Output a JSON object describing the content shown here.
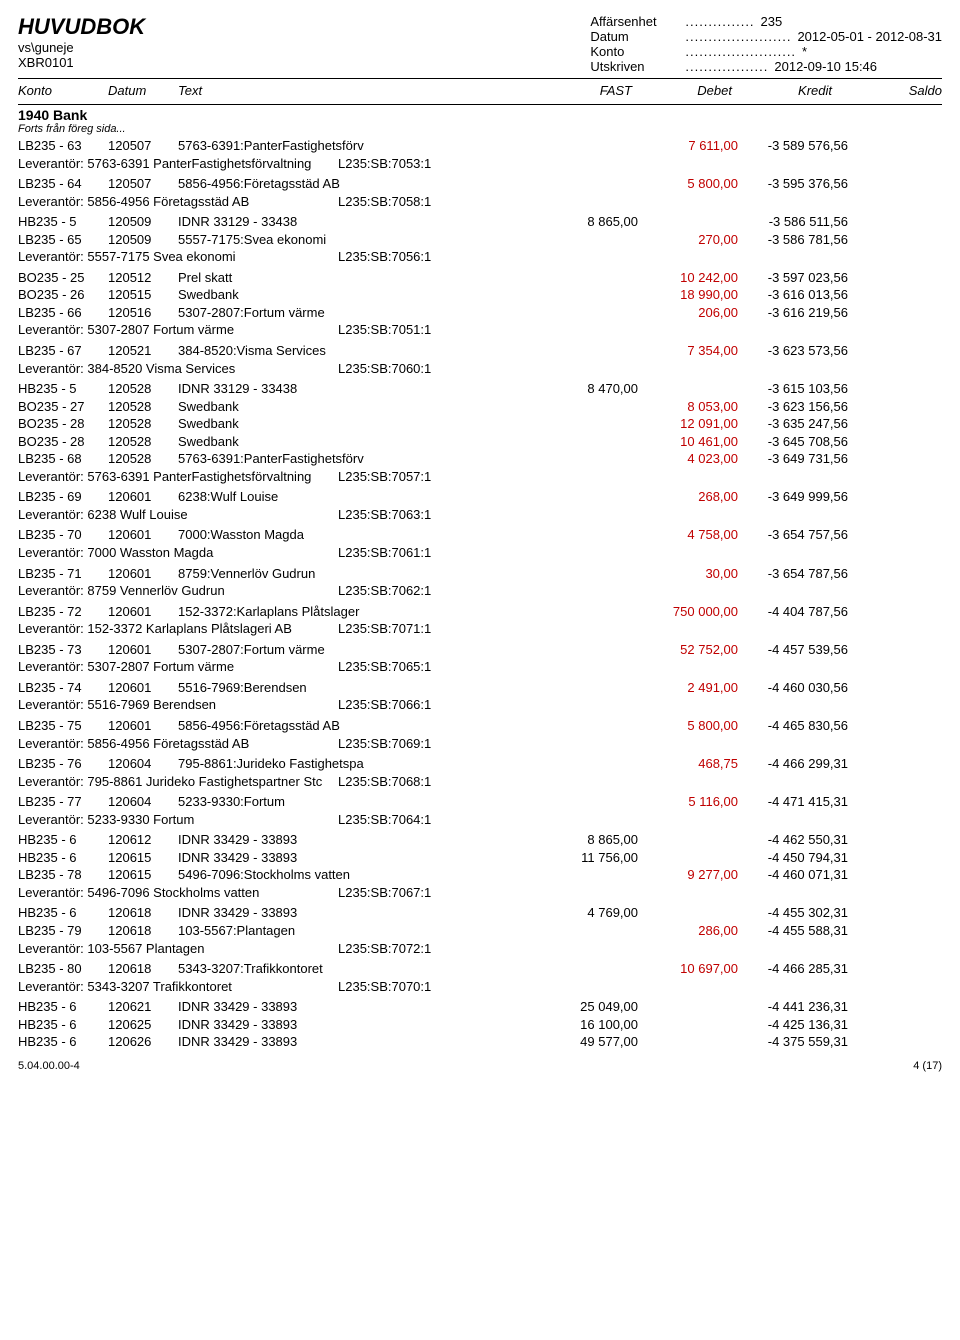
{
  "header": {
    "title": "HUVUDBOK",
    "sub1": "vs\\guneje",
    "sub2": "XBR0101",
    "meta": [
      {
        "label": "Affärsenhet",
        "dots": "...............",
        "value": "235"
      },
      {
        "label": "Datum",
        "dots": ".......................",
        "value": "2012-05-01 - 2012-08-31"
      },
      {
        "label": "Konto",
        "dots": "........................",
        "value": "*"
      },
      {
        "label": "Utskriven",
        "dots": "..................",
        "value": "2012-09-10   15:46"
      }
    ]
  },
  "columns": {
    "c1": "Konto",
    "c2": "Datum",
    "c3": "Text",
    "c4": "FAST",
    "c5": "Debet",
    "c6": "Kredit",
    "c7": "Saldo"
  },
  "section": {
    "title": "1940 Bank",
    "sub": "Forts från föreg sida..."
  },
  "groups": [
    {
      "rows": [
        {
          "a": "LB235 - 63",
          "d": "120507",
          "t": "5763-6391:PanterFastighetsförv",
          "f": "",
          "de": "",
          "kr": "7 611,00",
          "sa": "-3 589 576,56"
        }
      ],
      "footer": {
        "l": "Leverantör: 5763-6391 PanterFastighetsförvaltning",
        "r": "L235:SB:7053:1"
      }
    },
    {
      "rows": [
        {
          "a": "LB235 - 64",
          "d": "120507",
          "t": "5856-4956:Företagsstäd AB",
          "f": "",
          "de": "",
          "kr": "5 800,00",
          "sa": "-3 595 376,56"
        }
      ],
      "footer": {
        "l": "Leverantör: 5856-4956 Företagsstäd AB",
        "r": "L235:SB:7058:1"
      }
    },
    {
      "rows": [
        {
          "a": "HB235 - 5",
          "d": "120509",
          "t": "IDNR 33129 - 33438",
          "f": "",
          "de": "8 865,00",
          "kr": "",
          "sa": "-3 586 511,56"
        },
        {
          "a": "LB235 - 65",
          "d": "120509",
          "t": "5557-7175:Svea ekonomi",
          "f": "",
          "de": "",
          "kr": "270,00",
          "sa": "-3 586 781,56"
        }
      ],
      "footer": {
        "l": "Leverantör: 5557-7175 Svea ekonomi",
        "r": "L235:SB:7056:1"
      }
    },
    {
      "rows": [
        {
          "a": "BO235 - 25",
          "d": "120512",
          "t": "Prel skatt",
          "f": "",
          "de": "",
          "kr": "10 242,00",
          "sa": "-3 597 023,56"
        },
        {
          "a": "BO235 - 26",
          "d": "120515",
          "t": "Swedbank",
          "f": "",
          "de": "",
          "kr": "18 990,00",
          "sa": "-3 616 013,56"
        },
        {
          "a": "LB235 - 66",
          "d": "120516",
          "t": "5307-2807:Fortum värme",
          "f": "",
          "de": "",
          "kr": "206,00",
          "sa": "-3 616 219,56"
        }
      ],
      "footer": {
        "l": "Leverantör: 5307-2807 Fortum värme",
        "r": "L235:SB:7051:1"
      }
    },
    {
      "rows": [
        {
          "a": "LB235 - 67",
          "d": "120521",
          "t": "384-8520:Visma Services",
          "f": "",
          "de": "",
          "kr": "7 354,00",
          "sa": "-3 623 573,56"
        }
      ],
      "footer": {
        "l": "Leverantör: 384-8520 Visma Services",
        "r": "L235:SB:7060:1"
      }
    },
    {
      "rows": [
        {
          "a": "HB235 - 5",
          "d": "120528",
          "t": "IDNR 33129 - 33438",
          "f": "",
          "de": "8 470,00",
          "kr": "",
          "sa": "-3 615 103,56"
        },
        {
          "a": "BO235 - 27",
          "d": "120528",
          "t": "Swedbank",
          "f": "",
          "de": "",
          "kr": "8 053,00",
          "sa": "-3 623 156,56"
        },
        {
          "a": "BO235 - 28",
          "d": "120528",
          "t": "Swedbank",
          "f": "",
          "de": "",
          "kr": "12 091,00",
          "sa": "-3 635 247,56"
        },
        {
          "a": "BO235 - 28",
          "d": "120528",
          "t": "Swedbank",
          "f": "",
          "de": "",
          "kr": "10 461,00",
          "sa": "-3 645 708,56"
        },
        {
          "a": "LB235 - 68",
          "d": "120528",
          "t": "5763-6391:PanterFastighetsförv",
          "f": "",
          "de": "",
          "kr": "4 023,00",
          "sa": "-3 649 731,56"
        }
      ],
      "footer": {
        "l": "Leverantör: 5763-6391 PanterFastighetsförvaltning",
        "r": "L235:SB:7057:1"
      }
    },
    {
      "rows": [
        {
          "a": "LB235 - 69",
          "d": "120601",
          "t": "6238:Wulf Louise",
          "f": "",
          "de": "",
          "kr": "268,00",
          "sa": "-3 649 999,56"
        }
      ],
      "footer": {
        "l": "Leverantör: 6238 Wulf Louise",
        "r": "L235:SB:7063:1"
      }
    },
    {
      "rows": [
        {
          "a": "LB235 - 70",
          "d": "120601",
          "t": "7000:Wasston Magda",
          "f": "",
          "de": "",
          "kr": "4 758,00",
          "sa": "-3 654 757,56"
        }
      ],
      "footer": {
        "l": "Leverantör: 7000 Wasston Magda",
        "r": "L235:SB:7061:1"
      }
    },
    {
      "rows": [
        {
          "a": "LB235 - 71",
          "d": "120601",
          "t": "8759:Vennerlöv Gudrun",
          "f": "",
          "de": "",
          "kr": "30,00",
          "sa": "-3 654 787,56"
        }
      ],
      "footer": {
        "l": "Leverantör: 8759 Vennerlöv Gudrun",
        "r": "L235:SB:7062:1"
      }
    },
    {
      "rows": [
        {
          "a": "LB235 - 72",
          "d": "120601",
          "t": "152-3372:Karlaplans Plåtslager",
          "f": "",
          "de": "",
          "kr": "750 000,00",
          "sa": "-4 404 787,56"
        }
      ],
      "footer": {
        "l": "Leverantör: 152-3372 Karlaplans Plåtslageri AB",
        "r": "L235:SB:7071:1"
      }
    },
    {
      "rows": [
        {
          "a": "LB235 - 73",
          "d": "120601",
          "t": "5307-2807:Fortum värme",
          "f": "",
          "de": "",
          "kr": "52 752,00",
          "sa": "-4 457 539,56"
        }
      ],
      "footer": {
        "l": "Leverantör: 5307-2807 Fortum värme",
        "r": "L235:SB:7065:1"
      }
    },
    {
      "rows": [
        {
          "a": "LB235 - 74",
          "d": "120601",
          "t": "5516-7969:Berendsen",
          "f": "",
          "de": "",
          "kr": "2 491,00",
          "sa": "-4 460 030,56"
        }
      ],
      "footer": {
        "l": "Leverantör: 5516-7969 Berendsen",
        "r": "L235:SB:7066:1"
      }
    },
    {
      "rows": [
        {
          "a": "LB235 - 75",
          "d": "120601",
          "t": "5856-4956:Företagsstäd AB",
          "f": "",
          "de": "",
          "kr": "5 800,00",
          "sa": "-4 465 830,56"
        }
      ],
      "footer": {
        "l": "Leverantör: 5856-4956 Företagsstäd AB",
        "r": "L235:SB:7069:1"
      }
    },
    {
      "rows": [
        {
          "a": "LB235 - 76",
          "d": "120604",
          "t": "795-8861:Jurideko Fastighetspa",
          "f": "",
          "de": "",
          "kr": "468,75",
          "sa": "-4 466 299,31"
        }
      ],
      "footer": {
        "l": "Leverantör: 795-8861 Jurideko Fastighetspartner Stc",
        "r": "L235:SB:7068:1"
      }
    },
    {
      "rows": [
        {
          "a": "LB235 - 77",
          "d": "120604",
          "t": "5233-9330:Fortum",
          "f": "",
          "de": "",
          "kr": "5 116,00",
          "sa": "-4 471 415,31"
        }
      ],
      "footer": {
        "l": "Leverantör: 5233-9330 Fortum",
        "r": "L235:SB:7064:1"
      }
    },
    {
      "rows": [
        {
          "a": "HB235 - 6",
          "d": "120612",
          "t": "IDNR 33429 - 33893",
          "f": "",
          "de": "8 865,00",
          "kr": "",
          "sa": "-4 462 550,31"
        },
        {
          "a": "HB235 - 6",
          "d": "120615",
          "t": "IDNR 33429 - 33893",
          "f": "",
          "de": "11 756,00",
          "kr": "",
          "sa": "-4 450 794,31"
        },
        {
          "a": "LB235 - 78",
          "d": "120615",
          "t": "5496-7096:Stockholms vatten",
          "f": "",
          "de": "",
          "kr": "9 277,00",
          "sa": "-4 460 071,31"
        }
      ],
      "footer": {
        "l": "Leverantör: 5496-7096 Stockholms vatten",
        "r": "L235:SB:7067:1"
      }
    },
    {
      "rows": [
        {
          "a": "HB235 - 6",
          "d": "120618",
          "t": "IDNR 33429 - 33893",
          "f": "",
          "de": "4 769,00",
          "kr": "",
          "sa": "-4 455 302,31"
        },
        {
          "a": "LB235 - 79",
          "d": "120618",
          "t": "103-5567:Plantagen",
          "f": "",
          "de": "",
          "kr": "286,00",
          "sa": "-4 455 588,31"
        }
      ],
      "footer": {
        "l": "Leverantör: 103-5567 Plantagen",
        "r": "L235:SB:7072:1"
      }
    },
    {
      "rows": [
        {
          "a": "LB235 - 80",
          "d": "120618",
          "t": "5343-3207:Trafikkontoret",
          "f": "",
          "de": "",
          "kr": "10 697,00",
          "sa": "-4 466 285,31"
        }
      ],
      "footer": {
        "l": "Leverantör: 5343-3207 Trafikkontoret",
        "r": "L235:SB:7070:1"
      }
    },
    {
      "rows": [
        {
          "a": "HB235 - 6",
          "d": "120621",
          "t": "IDNR 33429 - 33893",
          "f": "",
          "de": "25 049,00",
          "kr": "",
          "sa": "-4 441 236,31"
        },
        {
          "a": "HB235 - 6",
          "d": "120625",
          "t": "IDNR 33429 - 33893",
          "f": "",
          "de": "16 100,00",
          "kr": "",
          "sa": "-4 425 136,31"
        },
        {
          "a": "HB235 - 6",
          "d": "120626",
          "t": "IDNR 33429 - 33893",
          "f": "",
          "de": "49 577,00",
          "kr": "",
          "sa": "-4 375 559,31"
        }
      ]
    }
  ],
  "footer": {
    "left": "5.04.00.00-4",
    "right": "4 (17)"
  },
  "colors": {
    "kredit": "#c00000"
  }
}
